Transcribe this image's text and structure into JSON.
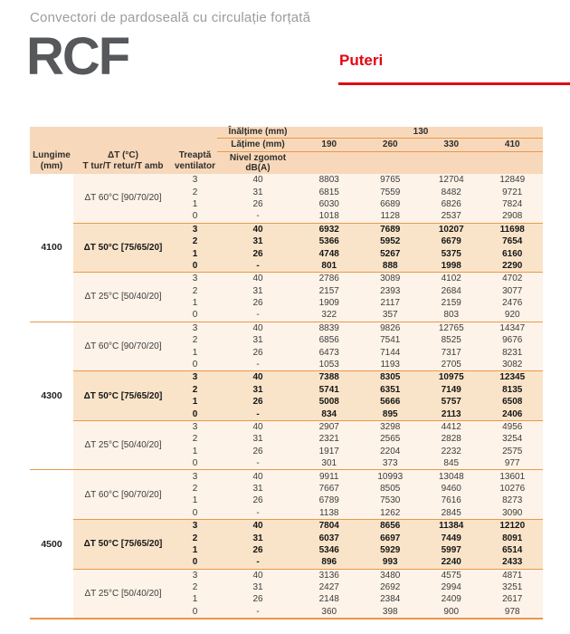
{
  "page": {
    "subtitle": "Convectori de pardoseală cu circulație forțată",
    "product": "RCF",
    "section_label": "Puteri"
  },
  "colors": {
    "accent_red": "#e30613",
    "header_bg": "#f8d8ba",
    "row_bg": "#fdf3e8",
    "highlight_row_bg": "#f9e4c9",
    "separator_orange": "#e9994b",
    "product_title_gray": "#56585b",
    "subtitle_gray": "#9c9c9d"
  },
  "table": {
    "height_label": "Înălțime (mm)",
    "height_value": "130",
    "width_label": "Lățime (mm)",
    "width_values": [
      "190",
      "260",
      "330",
      "410"
    ],
    "col_headers": {
      "length_l1": "Lungime",
      "length_l2": "(mm)",
      "dt_l1": "ΔT (°C)",
      "dt_l2": "T tur/T retur/T amb",
      "step_l1": "Treaptă",
      "step_l2": "ventilator",
      "noise_l1": "Nivel zgomot",
      "noise_l2": "dB(A)"
    },
    "groups": [
      {
        "length": "4100",
        "blocks": [
          {
            "dt": "ΔT 60°C [90/70/20]",
            "bold": false,
            "rows": [
              {
                "step": "3",
                "noise": "40",
                "values": [
                  "8803",
                  "9765",
                  "12704",
                  "12849"
                ]
              },
              {
                "step": "2",
                "noise": "31",
                "values": [
                  "6815",
                  "7559",
                  "8482",
                  "9721"
                ]
              },
              {
                "step": "1",
                "noise": "26",
                "values": [
                  "6030",
                  "6689",
                  "6826",
                  "7824"
                ]
              },
              {
                "step": "0",
                "noise": "-",
                "values": [
                  "1018",
                  "1128",
                  "2537",
                  "2908"
                ]
              }
            ]
          },
          {
            "dt": "ΔT 50°C [75/65/20]",
            "bold": true,
            "rows": [
              {
                "step": "3",
                "noise": "40",
                "values": [
                  "6932",
                  "7689",
                  "10207",
                  "11698"
                ]
              },
              {
                "step": "2",
                "noise": "31",
                "values": [
                  "5366",
                  "5952",
                  "6679",
                  "7654"
                ]
              },
              {
                "step": "1",
                "noise": "26",
                "values": [
                  "4748",
                  "5267",
                  "5375",
                  "6160"
                ]
              },
              {
                "step": "0",
                "noise": "-",
                "values": [
                  "801",
                  "888",
                  "1998",
                  "2290"
                ]
              }
            ]
          },
          {
            "dt": "ΔT 25°C [50/40/20]",
            "bold": false,
            "rows": [
              {
                "step": "3",
                "noise": "40",
                "values": [
                  "2786",
                  "3089",
                  "4102",
                  "4702"
                ]
              },
              {
                "step": "2",
                "noise": "31",
                "values": [
                  "2157",
                  "2393",
                  "2684",
                  "3077"
                ]
              },
              {
                "step": "1",
                "noise": "26",
                "values": [
                  "1909",
                  "2117",
                  "2159",
                  "2476"
                ]
              },
              {
                "step": "0",
                "noise": "-",
                "values": [
                  "322",
                  "357",
                  "803",
                  "920"
                ]
              }
            ]
          }
        ]
      },
      {
        "length": "4300",
        "blocks": [
          {
            "dt": "ΔT 60°C [90/70/20]",
            "bold": false,
            "rows": [
              {
                "step": "3",
                "noise": "40",
                "values": [
                  "8839",
                  "9826",
                  "12765",
                  "14347"
                ]
              },
              {
                "step": "2",
                "noise": "31",
                "values": [
                  "6856",
                  "7541",
                  "8525",
                  "9676"
                ]
              },
              {
                "step": "1",
                "noise": "26",
                "values": [
                  "6473",
                  "7144",
                  "7317",
                  "8231"
                ]
              },
              {
                "step": "0",
                "noise": "-",
                "values": [
                  "1053",
                  "1193",
                  "2705",
                  "3082"
                ]
              }
            ]
          },
          {
            "dt": "ΔT 50°C [75/65/20]",
            "bold": true,
            "rows": [
              {
                "step": "3",
                "noise": "40",
                "values": [
                  "7388",
                  "8305",
                  "10975",
                  "12345"
                ]
              },
              {
                "step": "2",
                "noise": "31",
                "values": [
                  "5741",
                  "6351",
                  "7149",
                  "8135"
                ]
              },
              {
                "step": "1",
                "noise": "26",
                "values": [
                  "5008",
                  "5666",
                  "5757",
                  "6508"
                ]
              },
              {
                "step": "0",
                "noise": "-",
                "values": [
                  "834",
                  "895",
                  "2113",
                  "2406"
                ]
              }
            ]
          },
          {
            "dt": "ΔT 25°C [50/40/20]",
            "bold": false,
            "rows": [
              {
                "step": "3",
                "noise": "40",
                "values": [
                  "2907",
                  "3298",
                  "4412",
                  "4956"
                ]
              },
              {
                "step": "2",
                "noise": "31",
                "values": [
                  "2321",
                  "2565",
                  "2828",
                  "3254"
                ]
              },
              {
                "step": "1",
                "noise": "26",
                "values": [
                  "1917",
                  "2204",
                  "2232",
                  "2575"
                ]
              },
              {
                "step": "0",
                "noise": "-",
                "values": [
                  "301",
                  "373",
                  "845",
                  "977"
                ]
              }
            ]
          }
        ]
      },
      {
        "length": "4500",
        "blocks": [
          {
            "dt": "ΔT 60°C [90/70/20]",
            "bold": false,
            "rows": [
              {
                "step": "3",
                "noise": "40",
                "values": [
                  "9911",
                  "10993",
                  "13048",
                  "13601"
                ]
              },
              {
                "step": "2",
                "noise": "31",
                "values": [
                  "7667",
                  "8505",
                  "9460",
                  "10276"
                ]
              },
              {
                "step": "1",
                "noise": "26",
                "values": [
                  "6789",
                  "7530",
                  "7616",
                  "8273"
                ]
              },
              {
                "step": "0",
                "noise": "-",
                "values": [
                  "1138",
                  "1262",
                  "2845",
                  "3090"
                ]
              }
            ]
          },
          {
            "dt": "ΔT 50°C [75/65/20]",
            "bold": true,
            "rows": [
              {
                "step": "3",
                "noise": "40",
                "values": [
                  "7804",
                  "8656",
                  "11384",
                  "12120"
                ]
              },
              {
                "step": "2",
                "noise": "31",
                "values": [
                  "6037",
                  "6697",
                  "7449",
                  "8091"
                ]
              },
              {
                "step": "1",
                "noise": "26",
                "values": [
                  "5346",
                  "5929",
                  "5997",
                  "6514"
                ]
              },
              {
                "step": "0",
                "noise": "-",
                "values": [
                  "896",
                  "993",
                  "2240",
                  "2433"
                ]
              }
            ]
          },
          {
            "dt": "ΔT 25°C [50/40/20]",
            "bold": false,
            "rows": [
              {
                "step": "3",
                "noise": "40",
                "values": [
                  "3136",
                  "3480",
                  "4575",
                  "4871"
                ]
              },
              {
                "step": "2",
                "noise": "31",
                "values": [
                  "2427",
                  "2692",
                  "2994",
                  "3251"
                ]
              },
              {
                "step": "1",
                "noise": "26",
                "values": [
                  "2148",
                  "2384",
                  "2409",
                  "2617"
                ]
              },
              {
                "step": "0",
                "noise": "-",
                "values": [
                  "360",
                  "398",
                  "900",
                  "978"
                ]
              }
            ]
          }
        ]
      }
    ]
  }
}
